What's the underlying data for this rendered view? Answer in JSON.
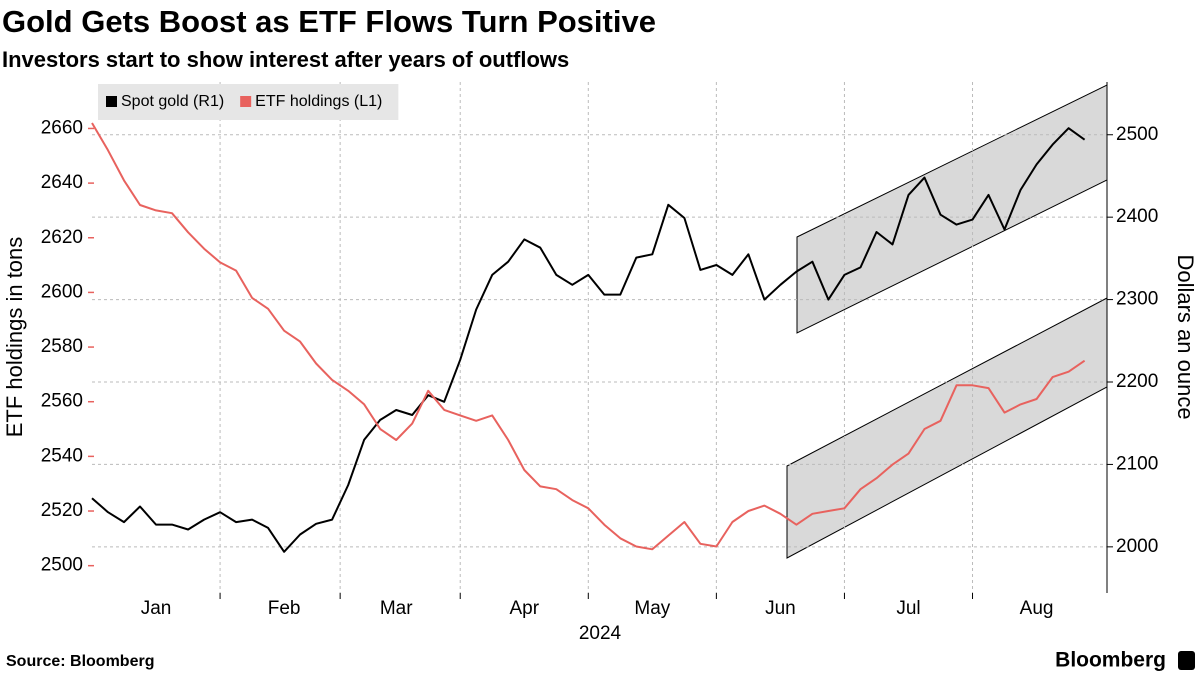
{
  "chart_data": {
    "type": "line",
    "title": "Gold Gets Boost as ETF Flows Turn Positive",
    "subtitle": "Investors start to show interest after years of outflows",
    "x_label": "2024",
    "y_label": "ETF holdings in tons",
    "y2_label": "Dollars an ounce",
    "source": "Source: Bloomberg",
    "brand": "Bloomberg",
    "legend": "upper left",
    "grid": true,
    "categories": [
      null,
      null,
      null,
      null,
      "Jan",
      null,
      null,
      null,
      null,
      null,
      null,
      null,
      "Feb",
      null,
      null,
      null,
      null,
      null,
      null,
      "Mar",
      null,
      null,
      null,
      null,
      null,
      null,
      null,
      "Apr",
      null,
      null,
      null,
      null,
      null,
      null,
      null,
      "May",
      null,
      null,
      null,
      null,
      null,
      null,
      null,
      "Jun",
      null,
      null,
      null,
      null,
      null,
      null,
      null,
      "Jul",
      null,
      null,
      null,
      null,
      null,
      null,
      null,
      "Aug",
      null,
      null,
      null
    ],
    "series": [
      {
        "name": "Spot gold (R1)",
        "color": "#000000",
        "axis": "y2",
        "values": [
          2059,
          2042,
          2030,
          2049,
          2027,
          2027,
          2021,
          2033,
          2042,
          2030,
          2033,
          2023,
          1994,
          2015,
          2028,
          2033,
          2075,
          2130,
          2154,
          2166,
          2160,
          2184,
          2176,
          2227,
          2288,
          2330,
          2346,
          2373,
          2363,
          2330,
          2318,
          2330,
          2306,
          2306,
          2351,
          2355,
          2415,
          2399,
          2336,
          2342,
          2330,
          2355,
          2300,
          2318,
          2334,
          2346,
          2300,
          2330,
          2339,
          2382,
          2367,
          2427,
          2448,
          2403,
          2391,
          2397,
          2427,
          2385,
          2433,
          2464,
          2488,
          2508,
          2494
        ]
      },
      {
        "name": "ETF holdings (L1)",
        "color": "#e8625e",
        "values": [
          2662,
          2652,
          2641,
          2632,
          2630,
          2629,
          2622,
          2616,
          2611,
          2608,
          2598,
          2594,
          2586,
          2582,
          2574,
          2568,
          2564,
          2559,
          2550,
          2546,
          2552,
          2564,
          2557,
          2555,
          2553,
          2555,
          2546,
          2535,
          2529,
          2528,
          2524,
          2521,
          2515,
          2510,
          2507,
          2506,
          2511,
          2516,
          2508,
          2507,
          2516,
          2520,
          2522,
          2519,
          2515,
          2519,
          2520,
          2521,
          2528,
          2532,
          2537,
          2541,
          2550,
          2553,
          2566,
          2566,
          2565,
          2556,
          2559,
          2561,
          2569,
          2571,
          2575
        ]
      }
    ],
    "ylim": [
      2490,
      2677
    ],
    "yticks": [
      2500,
      2520,
      2540,
      2560,
      2580,
      2600,
      2620,
      2640,
      2660
    ],
    "y2lim": [
      1944,
      2564
    ],
    "y2ticks": [
      2000,
      2100,
      2200,
      2300,
      2400,
      2500
    ]
  }
}
